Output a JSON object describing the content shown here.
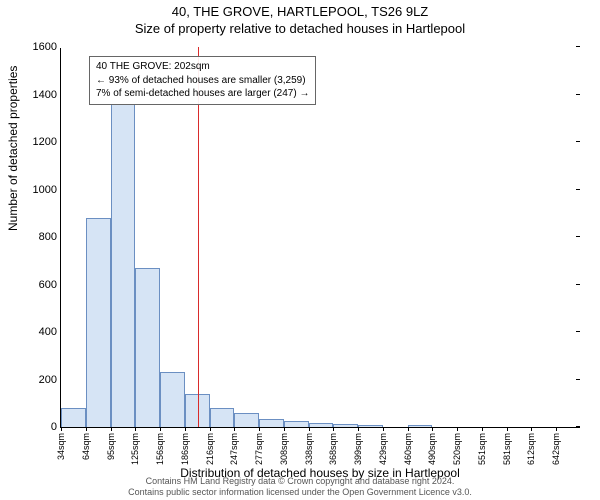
{
  "title_line1": "40, THE GROVE, HARTLEPOOL, TS26 9LZ",
  "title_line2": "Size of property relative to detached houses in Hartlepool",
  "ylabel": "Number of detached properties",
  "xlabel": "Distribution of detached houses by size in Hartlepool",
  "chart": {
    "type": "histogram",
    "background_color": "#ffffff",
    "bar_fill": "#d6e4f5",
    "bar_stroke": "#6b8fc2",
    "ref_line_color": "#d92b2b",
    "ylim": [
      0,
      1600
    ],
    "ytick_step": 200,
    "yticks": [
      0,
      200,
      400,
      600,
      800,
      1000,
      1200,
      1400,
      1600
    ],
    "xtick_labels": [
      "34sqm",
      "64sqm",
      "95sqm",
      "125sqm",
      "156sqm",
      "186sqm",
      "216sqm",
      "247sqm",
      "277sqm",
      "308sqm",
      "338sqm",
      "368sqm",
      "399sqm",
      "429sqm",
      "460sqm",
      "490sqm",
      "520sqm",
      "551sqm",
      "581sqm",
      "612sqm",
      "642sqm"
    ],
    "bins": [
      {
        "x": 34,
        "count": 80
      },
      {
        "x": 64,
        "count": 880
      },
      {
        "x": 95,
        "count": 1360
      },
      {
        "x": 125,
        "count": 670
      },
      {
        "x": 156,
        "count": 230
      },
      {
        "x": 186,
        "count": 140
      },
      {
        "x": 216,
        "count": 78
      },
      {
        "x": 247,
        "count": 60
      },
      {
        "x": 277,
        "count": 35
      },
      {
        "x": 308,
        "count": 25
      },
      {
        "x": 338,
        "count": 18
      },
      {
        "x": 368,
        "count": 12
      },
      {
        "x": 399,
        "count": 10
      },
      {
        "x": 429,
        "count": 0
      },
      {
        "x": 460,
        "count": 8
      },
      {
        "x": 490,
        "count": 0
      },
      {
        "x": 520,
        "count": 0
      },
      {
        "x": 551,
        "count": 0
      },
      {
        "x": 581,
        "count": 0
      },
      {
        "x": 612,
        "count": 0
      },
      {
        "x": 642,
        "count": 0
      }
    ],
    "x_start": 34,
    "x_step": 30.4,
    "ref_value_sqm": 202
  },
  "annotation": {
    "line1": "40 THE GROVE: 202sqm",
    "line2": "← 93% of detached houses are smaller (3,259)",
    "line3": "7% of semi-detached houses are larger (247) →"
  },
  "footer_line1": "Contains HM Land Registry data © Crown copyright and database right 2024.",
  "footer_line2": "Contains public sector information licensed under the Open Government Licence v3.0."
}
